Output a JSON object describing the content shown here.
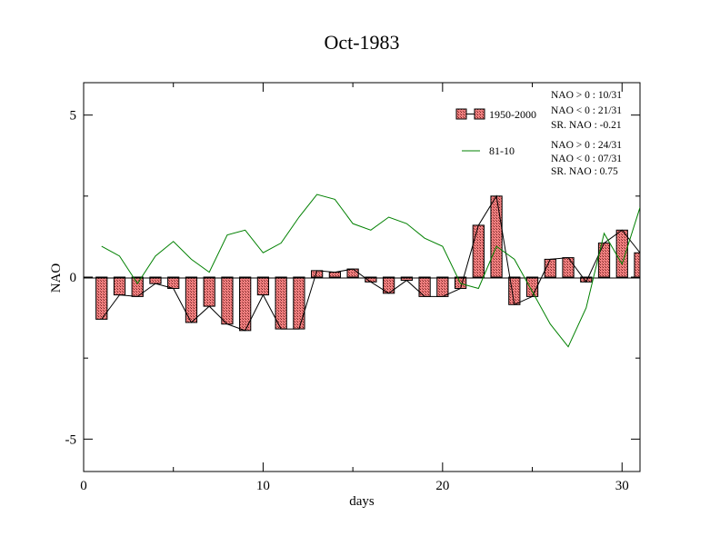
{
  "chart_data": {
    "type": "bar",
    "title": "Oct-1983",
    "xlabel": "days",
    "ylabel": "NAO",
    "xlim": [
      0,
      31
    ],
    "ylim": [
      -6,
      6
    ],
    "x_ticks": [
      0,
      10,
      20,
      30
    ],
    "x_tick_labels": [
      "0",
      "10",
      "20",
      "30"
    ],
    "y_ticks": [
      -5,
      0,
      5
    ],
    "y_tick_labels": [
      "-5",
      "0",
      "5"
    ],
    "grid": false,
    "legend_position": "top-right",
    "days": [
      1,
      2,
      3,
      4,
      5,
      6,
      7,
      8,
      9,
      10,
      11,
      12,
      13,
      14,
      15,
      16,
      17,
      18,
      19,
      20,
      21,
      22,
      23,
      24,
      25,
      26,
      27,
      28,
      29,
      30,
      31
    ],
    "series": [
      {
        "name": "1950-2000",
        "kind": "bar-with-line",
        "fill": "#f08080",
        "line_color": "#000000",
        "values": [
          -1.3,
          -0.55,
          -0.6,
          -0.2,
          -0.35,
          -1.4,
          -0.9,
          -1.45,
          -1.65,
          -0.55,
          -1.6,
          -1.6,
          0.2,
          0.15,
          0.25,
          -0.15,
          -0.5,
          -0.1,
          -0.6,
          -0.6,
          -0.35,
          1.6,
          2.5,
          -0.85,
          -0.6,
          0.55,
          0.6,
          -0.15,
          1.05,
          1.45,
          0.75
        ]
      },
      {
        "name": "81-10",
        "kind": "line",
        "line_color": "#008000",
        "values": [
          0.95,
          0.65,
          -0.2,
          0.65,
          1.1,
          0.55,
          0.15,
          1.3,
          1.45,
          0.75,
          1.05,
          1.85,
          2.55,
          2.4,
          1.65,
          1.45,
          1.85,
          1.65,
          1.2,
          0.95,
          -0.2,
          -0.35,
          0.95,
          0.55,
          -0.45,
          -1.45,
          -2.15,
          -0.95,
          1.35,
          0.4,
          2.15
        ]
      }
    ],
    "stats": [
      {
        "lines": [
          "NAO > 0 : 10/31",
          "NAO < 0 : 21/31",
          "SR. NAO : -0.21"
        ]
      },
      {
        "lines": [
          "NAO > 0 : 24/31",
          "NAO < 0 : 07/31",
          "SR. NAO : 0.75"
        ]
      }
    ]
  }
}
